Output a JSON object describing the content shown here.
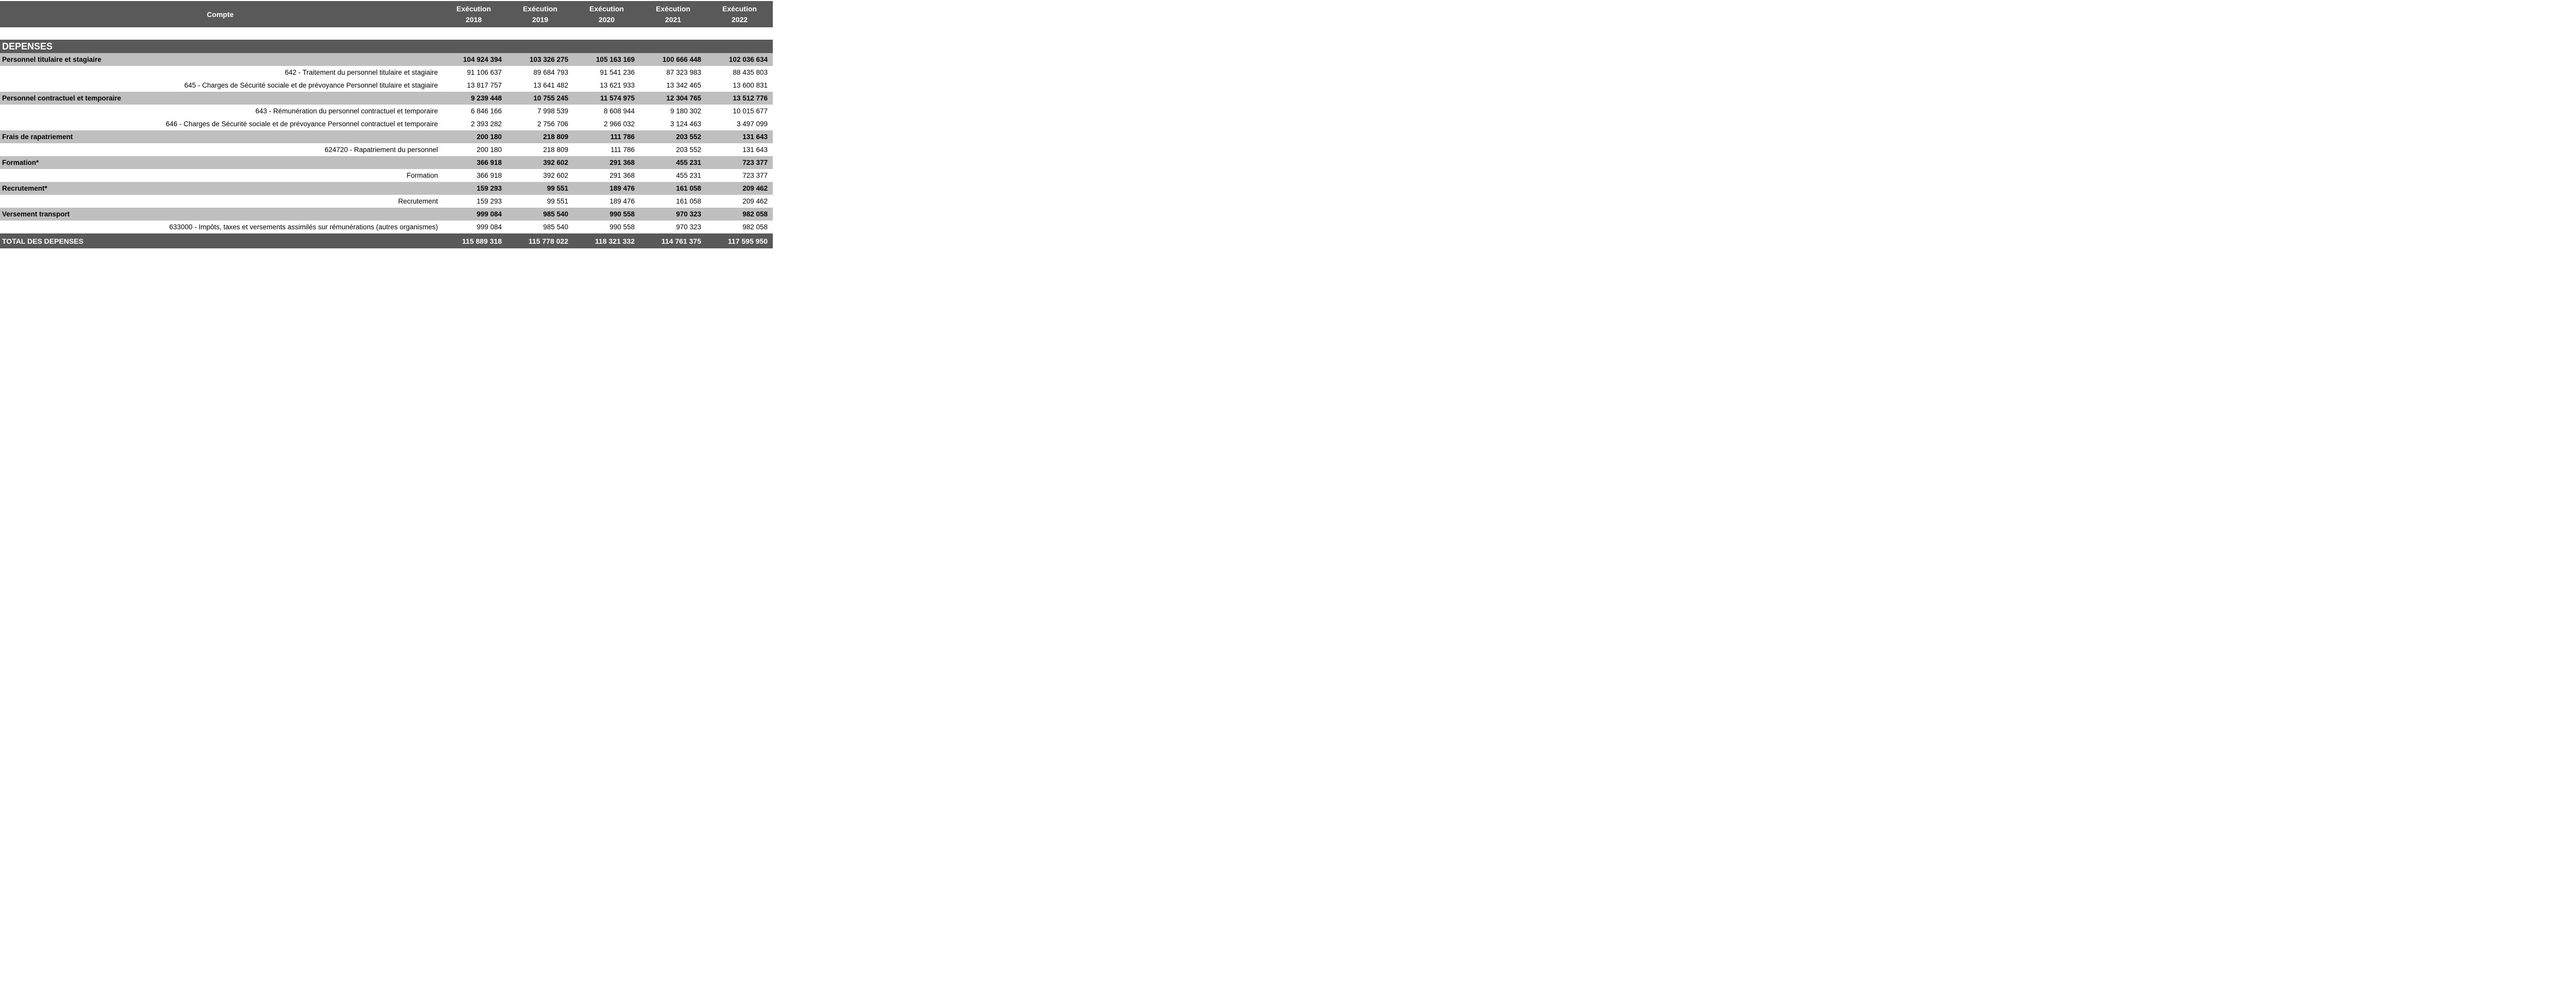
{
  "colors": {
    "header_bg": "#595959",
    "category_row_bg": "#bfbfbf",
    "detail_row_bg": "#ffffff",
    "header_text": "#ffffff",
    "body_text": "#000000"
  },
  "table": {
    "account_header": "Compte",
    "columns": [
      {
        "title": "Exécution",
        "year": "2018"
      },
      {
        "title": "Exécution",
        "year": "2019"
      },
      {
        "title": "Exécution",
        "year": "2020"
      },
      {
        "title": "Exécution",
        "year": "2021"
      },
      {
        "title": "Exécution",
        "year": "2022"
      }
    ],
    "section_header": "DEPENSES",
    "rows": [
      {
        "type": "category",
        "label": "Personnel titulaire et stagiaire",
        "values": [
          "104 924 394",
          "103 326 275",
          "105 163 169",
          "100 666 448",
          "102 036 634"
        ]
      },
      {
        "type": "detail",
        "label": "642 - Traitement du personnel titulaire et stagiaire",
        "values": [
          "91 106 637",
          "89 684 793",
          "91 541 236",
          "87 323 983",
          "88 435 803"
        ]
      },
      {
        "type": "detail",
        "label": "645 - Charges de Sécurité sociale et de prévoyance Personnel titulaire et stagiaire",
        "values": [
          "13 817 757",
          "13 641 482",
          "13 621 933",
          "13 342 465",
          "13 600 831"
        ]
      },
      {
        "type": "category",
        "label": "Personnel contractuel et temporaire",
        "values": [
          "9 239 448",
          "10 755 245",
          "11 574 975",
          "12 304 765",
          "13 512 776"
        ]
      },
      {
        "type": "detail",
        "label": "643 - Rémunération du personnel contractuel et temporaire",
        "values": [
          "6 846 166",
          "7 998 539",
          "8 608 944",
          "9 180 302",
          "10 015 677"
        ]
      },
      {
        "type": "detail",
        "label": "646 - Charges de Sécurité sociale et de prévoyance Personnel contractuel et temporaire",
        "values": [
          "2 393 282",
          "2 756 706",
          "2 966 032",
          "3 124 463",
          "3 497 099"
        ]
      },
      {
        "type": "category",
        "label": "Frais de rapatriement",
        "values": [
          "200 180",
          "218 809",
          "111 786",
          "203 552",
          "131 643"
        ]
      },
      {
        "type": "detail",
        "label": "624720 - Rapatriement du personnel",
        "values": [
          "200 180",
          "218 809",
          "111 786",
          "203 552",
          "131 643"
        ]
      },
      {
        "type": "category",
        "label": "Formation*",
        "values": [
          "366 918",
          "392 602",
          "291 368",
          "455 231",
          "723 377"
        ]
      },
      {
        "type": "detail",
        "label": "Formation",
        "values": [
          "366 918",
          "392 602",
          "291 368",
          "455 231",
          "723 377"
        ]
      },
      {
        "type": "category",
        "label": "Recrutement*",
        "values": [
          "159 293",
          "99 551",
          "189 476",
          "161 058",
          "209 462"
        ]
      },
      {
        "type": "detail",
        "label": "Recrutement",
        "values": [
          "159 293",
          "99 551",
          "189 476",
          "161 058",
          "209 462"
        ]
      },
      {
        "type": "category",
        "label": "Versement transport",
        "values": [
          "999 084",
          "985 540",
          "990 558",
          "970 323",
          "982 058"
        ]
      },
      {
        "type": "detail",
        "label": "633000 - Impôts, taxes et versements assimilés sur rémunérations (autres organismes)",
        "values": [
          "999 084",
          "985 540",
          "990 558",
          "970 323",
          "982 058"
        ]
      }
    ],
    "total": {
      "label": "TOTAL DES DEPENSES",
      "values": [
        "115 889 318",
        "115 778 022",
        "118 321 332",
        "114 761 375",
        "117 595 950"
      ]
    }
  }
}
